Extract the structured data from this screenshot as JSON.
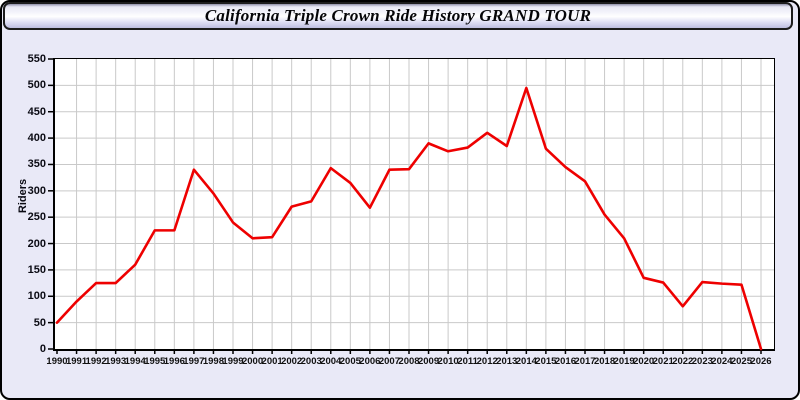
{
  "header": {
    "title": "California Triple Crown Ride History GRAND TOUR"
  },
  "chart_data": {
    "type": "line",
    "title": "California Triple Crown Ride History GRAND TOUR",
    "ylabel": "Riders",
    "xlabel": "",
    "legend": "none",
    "grid": true,
    "ylim": [
      0,
      550
    ],
    "ytick_step": 50,
    "y_ticks": [
      0,
      50,
      100,
      150,
      200,
      250,
      300,
      350,
      400,
      450,
      500,
      550
    ],
    "x": [
      1990,
      1991,
      1992,
      1993,
      1994,
      1995,
      1996,
      1997,
      1998,
      1999,
      2000,
      2001,
      2002,
      2003,
      2004,
      2005,
      2006,
      2007,
      2008,
      2009,
      2010,
      2011,
      2012,
      2013,
      2014,
      2015,
      2016,
      2017,
      2018,
      2019,
      2020,
      2021,
      2022,
      2023,
      2024,
      2025,
      2026
    ],
    "series": [
      {
        "name": "Riders",
        "values": [
          50,
          90,
          125,
          125,
          160,
          225,
          225,
          340,
          295,
          240,
          210,
          212,
          270,
          280,
          343,
          315,
          268,
          340,
          341,
          390,
          375,
          382,
          410,
          385,
          495,
          380,
          345,
          318,
          255,
          210,
          135,
          126,
          81,
          127,
          124,
          122,
          0
        ]
      }
    ],
    "colors": {
      "line": "#ee0000",
      "plot_background": "#ffffff",
      "gridline": "#c9c9c9",
      "page_background": "#e9e9f7",
      "axis": "#000000"
    }
  }
}
